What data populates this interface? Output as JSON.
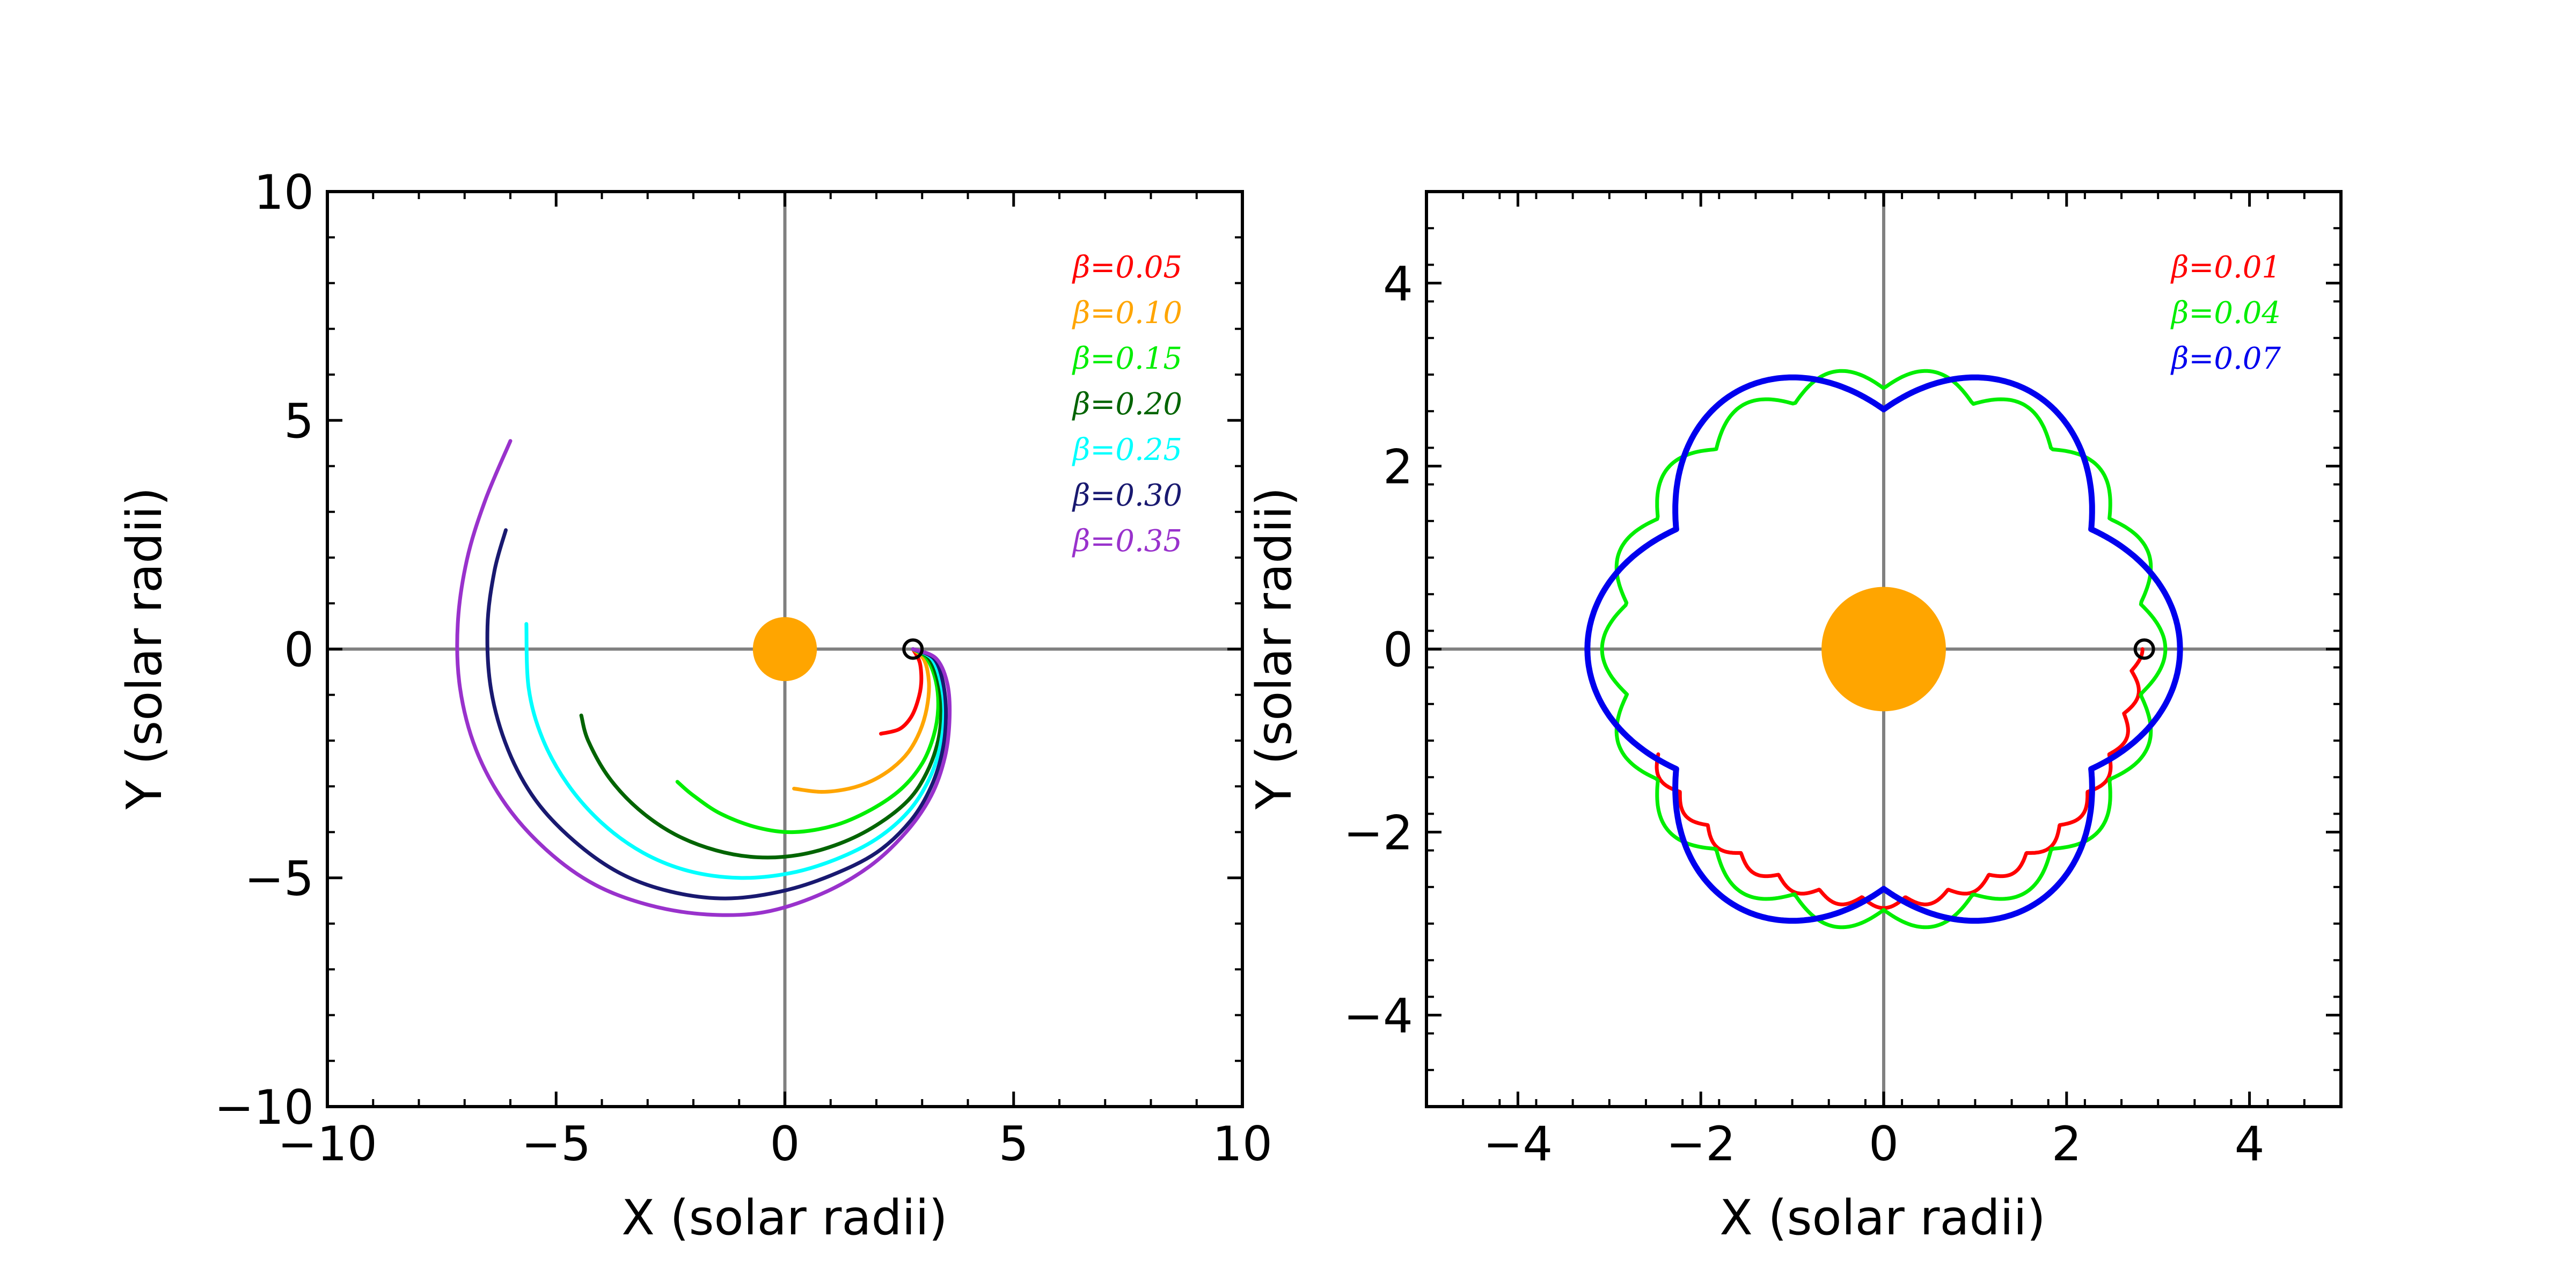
{
  "chart_data": [
    {
      "type": "line",
      "xlabel": "X (solar radii)",
      "ylabel": "Y (solar radii)",
      "xlim": [
        -10,
        10
      ],
      "ylim": [
        -10,
        10
      ],
      "xticks": [
        -10,
        -5,
        0,
        5,
        10
      ],
      "yticks": [
        -10,
        -5,
        0,
        5,
        10
      ],
      "xtick_labels": [
        "−10",
        "−5",
        "0",
        "5",
        "10"
      ],
      "ytick_labels": [
        "−10",
        "−5",
        "0",
        "5",
        "10"
      ],
      "crosshair_color": "#808080",
      "legend_position": "top-right",
      "sun": {
        "x": 0,
        "y": 0,
        "radius": 0.7,
        "color": "#FFA500"
      },
      "start_marker": {
        "x": 2.8,
        "y": 0
      },
      "series": [
        {
          "name": "β=0.05",
          "color": "#FF0000",
          "x": [
            2.8,
            2.95,
            2.98,
            2.9,
            2.75,
            2.5,
            2.1
          ],
          "y": [
            0,
            -0.3,
            -0.75,
            -1.15,
            -1.5,
            -1.75,
            -1.85
          ]
        },
        {
          "name": "β=0.10",
          "color": "#FFA500",
          "x": [
            2.8,
            3.05,
            3.15,
            3.1,
            2.95,
            2.7,
            2.35,
            1.9,
            1.4,
            0.8,
            0.2
          ],
          "y": [
            0,
            -0.25,
            -0.75,
            -1.3,
            -1.8,
            -2.25,
            -2.6,
            -2.88,
            -3.05,
            -3.12,
            -3.05
          ]
        },
        {
          "name": "β=0.15",
          "color": "#00EE00",
          "x": [
            2.8,
            3.1,
            3.3,
            3.35,
            3.25,
            3.0,
            2.55,
            1.9,
            1.1,
            0.2,
            -0.6,
            -1.4,
            -2.0,
            -2.35
          ],
          "y": [
            0,
            -0.2,
            -0.7,
            -1.3,
            -1.9,
            -2.5,
            -3.05,
            -3.5,
            -3.85,
            -4.0,
            -3.9,
            -3.6,
            -3.2,
            -2.9
          ]
        },
        {
          "name": "β=0.20",
          "color": "#006400",
          "x": [
            2.8,
            3.15,
            3.35,
            3.42,
            3.35,
            3.1,
            2.7,
            2.0,
            1.2,
            0.3,
            -0.6,
            -1.5,
            -2.4,
            -3.2,
            -3.85,
            -4.3,
            -4.45
          ],
          "y": [
            0,
            -0.2,
            -0.7,
            -1.3,
            -2.0,
            -2.7,
            -3.3,
            -3.85,
            -4.25,
            -4.5,
            -4.55,
            -4.4,
            -4.05,
            -3.5,
            -2.8,
            -2.0,
            -1.45
          ]
        },
        {
          "name": "β=0.25",
          "color": "#00FFFF",
          "x": [
            2.8,
            3.2,
            3.4,
            3.48,
            3.4,
            3.15,
            2.7,
            2.0,
            1.1,
            0.1,
            -1.0,
            -2.1,
            -3.1,
            -4.0,
            -4.75,
            -5.3,
            -5.6,
            -5.65
          ],
          "y": [
            0,
            -0.2,
            -0.7,
            -1.35,
            -2.1,
            -2.85,
            -3.55,
            -4.15,
            -4.6,
            -4.9,
            -5.0,
            -4.85,
            -4.45,
            -3.8,
            -2.95,
            -1.95,
            -0.85,
            0.55
          ]
        },
        {
          "name": "β=0.30",
          "color": "#191970",
          "x": [
            2.8,
            3.25,
            3.45,
            3.52,
            3.45,
            3.2,
            2.75,
            2.0,
            1.0,
            -0.1,
            -1.3,
            -2.5,
            -3.6,
            -4.6,
            -5.45,
            -6.05,
            -6.42,
            -6.5,
            -6.35,
            -6.1
          ],
          "y": [
            0,
            -0.2,
            -0.7,
            -1.4,
            -2.2,
            -3.0,
            -3.75,
            -4.45,
            -4.95,
            -5.3,
            -5.45,
            -5.3,
            -4.9,
            -4.2,
            -3.3,
            -2.2,
            -0.9,
            0.5,
            1.7,
            2.6
          ]
        },
        {
          "name": "β=0.35",
          "color": "#9932CC",
          "x": [
            2.8,
            3.3,
            3.55,
            3.6,
            3.5,
            3.2,
            2.65,
            1.85,
            0.8,
            -0.45,
            -1.7,
            -2.95,
            -4.15,
            -5.2,
            -6.1,
            -6.75,
            -7.1,
            -7.15,
            -6.95,
            -6.55,
            -6.0
          ],
          "y": [
            0,
            -0.2,
            -0.75,
            -1.5,
            -2.35,
            -3.2,
            -4.0,
            -4.75,
            -5.35,
            -5.75,
            -5.8,
            -5.6,
            -5.15,
            -4.4,
            -3.4,
            -2.2,
            -0.85,
            0.55,
            1.95,
            3.25,
            4.55
          ]
        }
      ]
    },
    {
      "type": "line",
      "xlabel": "X (solar radii)",
      "ylabel": "Y (solar radii)",
      "xlim": [
        -5,
        5
      ],
      "ylim": [
        -5,
        5
      ],
      "xticks": [
        -4,
        -2,
        0,
        2,
        4
      ],
      "yticks": [
        -4,
        -2,
        0,
        2,
        4
      ],
      "xtick_labels": [
        "−4",
        "−2",
        "0",
        "2",
        "4"
      ],
      "ytick_labels": [
        "−4",
        "−2",
        "0",
        "2",
        "4"
      ],
      "crosshair_color": "#808080",
      "legend_position": "top-right",
      "sun": {
        "x": 0,
        "y": 0,
        "radius": 0.68,
        "color": "#FFA500"
      },
      "start_marker": {
        "x": 2.85,
        "y": 0
      },
      "series": [
        {
          "name": "β=0.01",
          "color": "#FF0000",
          "r_base": 2.72,
          "petals": 36,
          "r_amp": 0.11,
          "theta_start_deg": 0,
          "theta_end_deg": -155
        },
        {
          "name": "β=0.04",
          "color": "#00EE00",
          "r_base": 2.85,
          "petals": 18,
          "r_amp": 0.23,
          "theta_start_deg": 0,
          "theta_end_deg": -505
        },
        {
          "name": "β=0.07",
          "color": "#0000EE",
          "r_base": 2.62,
          "petals": 6,
          "r_amp": 0.62,
          "theta_start_deg": 0,
          "theta_end_deg": -360
        }
      ]
    }
  ]
}
